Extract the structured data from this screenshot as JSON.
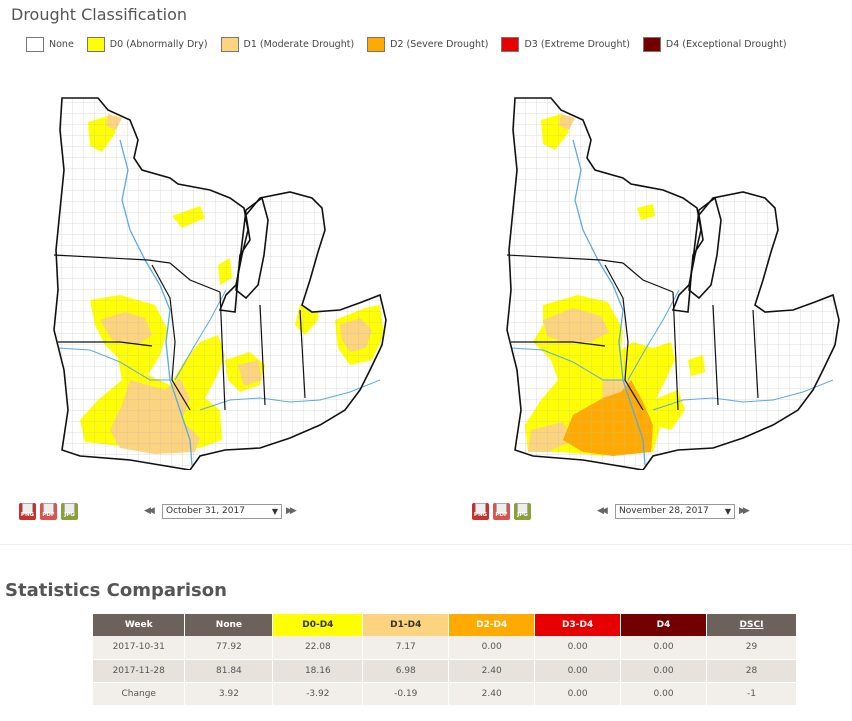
{
  "page": {
    "title": "Drought Classification"
  },
  "legend": [
    {
      "label": "None",
      "color": "#ffffff"
    },
    {
      "label": "D0 (Abnormally Dry)",
      "color": "#ffff00"
    },
    {
      "label": "D1 (Moderate Drought)",
      "color": "#fcd37f"
    },
    {
      "label": "D2 (Severe Drought)",
      "color": "#ffaa00"
    },
    {
      "label": "D3 (Extreme Drought)",
      "color": "#e60000"
    },
    {
      "label": "D4 (Exceptional Drought)",
      "color": "#730000"
    }
  ],
  "maps": [
    {
      "date": "October 31, 2017",
      "nav_prev": "◀◀",
      "nav_next": "▶▶"
    },
    {
      "date": "November 28, 2017",
      "nav_prev": "◀◀",
      "nav_next": "▶▶"
    }
  ],
  "exports": {
    "png": "PNG",
    "pdf": "PDF",
    "jpg": "JPG"
  },
  "colors": {
    "water": "#5aa9e6",
    "border": "#111111",
    "county": "#bbbbbb"
  },
  "statistics": {
    "title": "Statistics Comparison",
    "headers": [
      {
        "label": "Week",
        "bg": "#6d625b"
      },
      {
        "label": "None",
        "bg": "#6d625b"
      },
      {
        "label": "D0-D4",
        "bg": "#ffff00"
      },
      {
        "label": "D1-D4",
        "bg": "#fcd37f"
      },
      {
        "label": "D2-D4",
        "bg": "#ffaa00"
      },
      {
        "label": "D3-D4",
        "bg": "#e60000"
      },
      {
        "label": "D4",
        "bg": "#730000"
      },
      {
        "label": "DSCI",
        "bg": "#6d625b"
      }
    ],
    "rows": [
      [
        "2017-10-31",
        "77.92",
        "22.08",
        "7.17",
        "0.00",
        "0.00",
        "0.00",
        "29"
      ],
      [
        "2017-11-28",
        "81.84",
        "18.16",
        "6.98",
        "2.40",
        "0.00",
        "0.00",
        "28"
      ],
      [
        "Change",
        "3.92",
        "-3.92",
        "-0.19",
        "2.40",
        "0.00",
        "0.00",
        "-1"
      ]
    ]
  }
}
